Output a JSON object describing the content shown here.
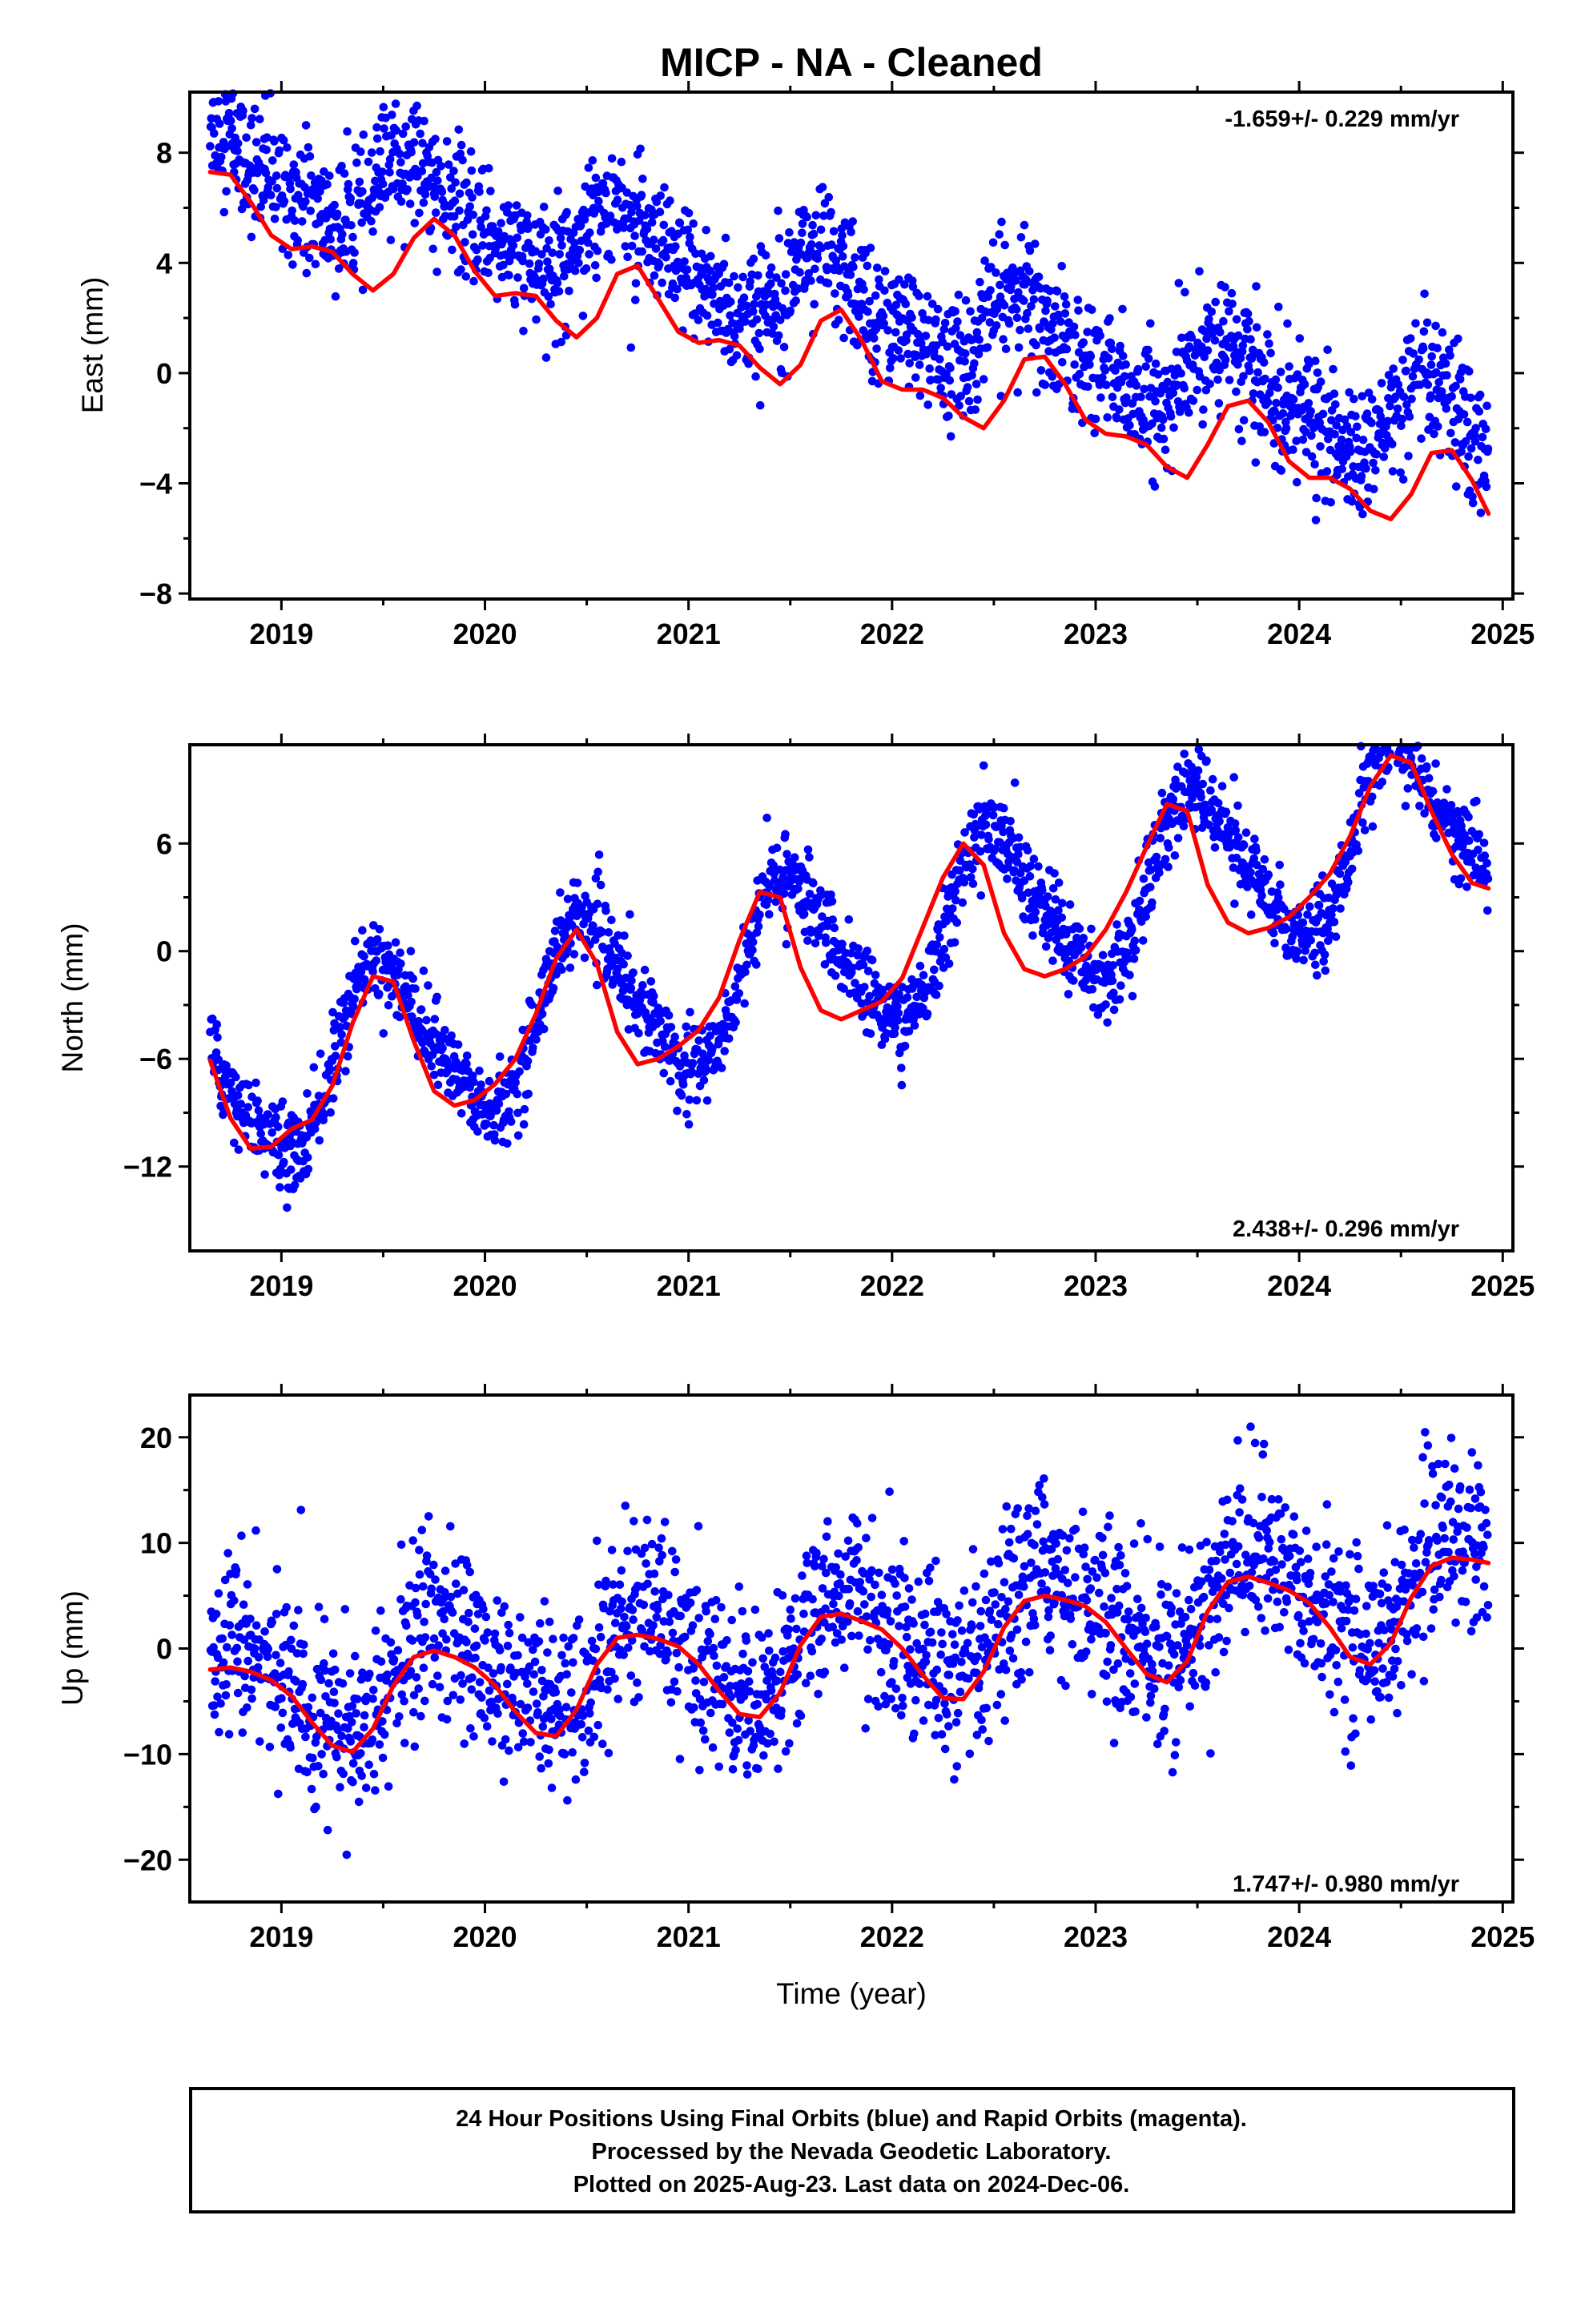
{
  "title": "MICP  - NA - Cleaned",
  "colors": {
    "points": "#0000ff",
    "fit": "#ff0000",
    "frame": "#000000"
  },
  "chart_data": [
    {
      "type": "scatter",
      "ylabel": "East (mm)",
      "xlabel": "",
      "xlim": [
        2018.55,
        2025.05
      ],
      "ylim": [
        -8.2,
        10.2
      ],
      "xticks": [
        "2019",
        "2020",
        "2021",
        "2022",
        "2023",
        "2024",
        "2025"
      ],
      "yticks": [
        "-8",
        "-4",
        "0",
        "4",
        "8"
      ],
      "rate_text": "-1.659+/- 0.229 mm/yr",
      "rate_position": "top-right",
      "series": [
        {
          "role": "daily positions (blue)",
          "x_start": 2018.65,
          "x_end": 2024.93,
          "trend_start": 7.8,
          "trend_rate": -1.659,
          "annual_amp": 1.3,
          "annual_peak": 2019.68,
          "semiannual_amp": 0.55,
          "scatter": 1.15
        },
        {
          "role": "fitted model (red)",
          "x": [
            2018.65,
            2018.75,
            2018.85,
            2018.95,
            2019.05,
            2019.15,
            2019.25,
            2019.35,
            2019.45,
            2019.55,
            2019.65,
            2019.75,
            2019.85,
            2019.95,
            2020.05,
            2020.15,
            2020.25,
            2020.35,
            2020.45,
            2020.55,
            2020.65,
            2020.75,
            2020.85,
            2020.95,
            2021.05,
            2021.15,
            2021.25,
            2021.35,
            2021.45,
            2021.55,
            2021.65,
            2021.75,
            2021.85,
            2021.95,
            2022.05,
            2022.15,
            2022.25,
            2022.35,
            2022.45,
            2022.55,
            2022.65,
            2022.75,
            2022.85,
            2022.95,
            2023.05,
            2023.15,
            2023.25,
            2023.35,
            2023.45,
            2023.55,
            2023.65,
            2023.75,
            2023.85,
            2023.95,
            2024.05,
            2024.15,
            2024.25,
            2024.35,
            2024.45,
            2024.55,
            2024.65,
            2024.75,
            2024.85,
            2024.93
          ],
          "y": [
            7.3,
            7.2,
            6.2,
            5.0,
            4.5,
            4.6,
            4.4,
            3.6,
            3.0,
            3.6,
            4.9,
            5.6,
            5.0,
            3.7,
            2.8,
            2.9,
            2.8,
            1.9,
            1.3,
            2.0,
            3.6,
            3.9,
            2.7,
            1.5,
            1.1,
            1.2,
            1.0,
            0.2,
            -0.4,
            0.3,
            1.9,
            2.3,
            1.2,
            -0.3,
            -0.6,
            -0.6,
            -0.9,
            -1.6,
            -2.0,
            -1.0,
            0.5,
            0.6,
            -0.4,
            -1.7,
            -2.2,
            -2.3,
            -2.6,
            -3.4,
            -3.8,
            -2.6,
            -1.2,
            -1.0,
            -1.8,
            -3.2,
            -3.8,
            -3.8,
            -4.2,
            -5.0,
            -5.3,
            -4.4,
            -2.9,
            -2.8,
            -3.9,
            -5.1
          ]
        }
      ]
    },
    {
      "type": "scatter",
      "ylabel": "North (mm)",
      "xlabel": "",
      "xlim": [
        2018.55,
        2025.05
      ],
      "ylim": [
        -16.7,
        11.5
      ],
      "xticks": [
        "2019",
        "2020",
        "2021",
        "2022",
        "2023",
        "2024",
        "2025"
      ],
      "yticks": [
        "-12",
        "-6",
        "0",
        "6"
      ],
      "rate_text": "2.438+/- 0.296 mm/yr",
      "rate_position": "bottom-right",
      "series": [
        {
          "role": "daily positions (blue)",
          "x_start": 2018.65,
          "x_end": 2024.93,
          "trend_start": -7.6,
          "trend_rate": 2.438,
          "annual_amp": 4.6,
          "annual_peak": 2019.5,
          "semiannual_amp": 0.8,
          "scatter": 1.15
        },
        {
          "role": "fitted model (red)",
          "x": [
            2018.65,
            2018.75,
            2018.85,
            2018.95,
            2019.05,
            2019.15,
            2019.25,
            2019.35,
            2019.45,
            2019.55,
            2019.65,
            2019.75,
            2019.85,
            2019.95,
            2020.05,
            2020.15,
            2020.25,
            2020.35,
            2020.45,
            2020.55,
            2020.65,
            2020.75,
            2020.85,
            2020.95,
            2021.05,
            2021.15,
            2021.25,
            2021.35,
            2021.45,
            2021.55,
            2021.65,
            2021.75,
            2021.85,
            2021.95,
            2022.05,
            2022.15,
            2022.25,
            2022.35,
            2022.45,
            2022.55,
            2022.65,
            2022.75,
            2022.85,
            2022.95,
            2023.05,
            2023.15,
            2023.25,
            2023.35,
            2023.45,
            2023.55,
            2023.65,
            2023.75,
            2023.85,
            2023.95,
            2024.05,
            2024.15,
            2024.25,
            2024.35,
            2024.45,
            2024.55,
            2024.65,
            2024.75,
            2024.85,
            2024.93
          ],
          "y": [
            -6.1,
            -9.3,
            -11.0,
            -10.9,
            -9.9,
            -9.4,
            -7.5,
            -4.0,
            -1.4,
            -1.7,
            -5.0,
            -7.8,
            -8.6,
            -8.3,
            -7.4,
            -6.0,
            -3.5,
            -0.4,
            1.2,
            -0.7,
            -4.5,
            -6.3,
            -6.0,
            -5.3,
            -4.4,
            -2.6,
            0.6,
            3.3,
            3.0,
            -0.9,
            -3.3,
            -3.8,
            -3.3,
            -2.8,
            -1.5,
            1.3,
            4.1,
            6.0,
            4.8,
            1.0,
            -1.0,
            -1.4,
            -1.0,
            -0.3,
            1.2,
            3.3,
            5.8,
            8.2,
            7.8,
            3.7,
            1.6,
            1.0,
            1.3,
            1.9,
            3.0,
            4.3,
            6.4,
            9.2,
            10.9,
            10.5,
            7.8,
            5.4,
            3.8,
            3.5
          ]
        }
      ]
    },
    {
      "type": "scatter",
      "ylabel": "Up (mm)",
      "xlabel": "Time (year)",
      "xlim": [
        2018.55,
        2025.05
      ],
      "ylim": [
        -24.0,
        24.0
      ],
      "xticks": [
        "2019",
        "2020",
        "2021",
        "2022",
        "2023",
        "2024",
        "2025"
      ],
      "yticks": [
        "-20",
        "-10",
        "0",
        "10",
        "20"
      ],
      "rate_text": "1.747+/- 0.980 mm/yr",
      "rate_position": "bottom-right",
      "series": [
        {
          "role": "daily positions (blue)",
          "x_start": 2018.65,
          "x_end": 2024.93,
          "trend_start": -4.6,
          "trend_rate": 1.747,
          "annual_amp": 4.6,
          "annual_peak": 2019.8,
          "semiannual_amp": 1.0,
          "scatter": 4.2
        },
        {
          "role": "fitted model (red)",
          "x": [
            2018.65,
            2018.75,
            2018.85,
            2018.95,
            2019.05,
            2019.15,
            2019.25,
            2019.35,
            2019.45,
            2019.55,
            2019.65,
            2019.75,
            2019.85,
            2019.95,
            2020.05,
            2020.15,
            2020.25,
            2020.35,
            2020.45,
            2020.55,
            2020.65,
            2020.75,
            2020.85,
            2020.95,
            2021.05,
            2021.15,
            2021.25,
            2021.35,
            2021.45,
            2021.55,
            2021.65,
            2021.75,
            2021.85,
            2021.95,
            2022.05,
            2022.15,
            2022.25,
            2022.35,
            2022.45,
            2022.55,
            2022.65,
            2022.75,
            2022.85,
            2022.95,
            2023.05,
            2023.15,
            2023.25,
            2023.35,
            2023.45,
            2023.55,
            2023.65,
            2023.75,
            2023.85,
            2023.95,
            2024.05,
            2024.15,
            2024.25,
            2024.35,
            2024.45,
            2024.55,
            2024.65,
            2024.75,
            2024.85,
            2024.93
          ],
          "y": [
            -2.0,
            -1.8,
            -2.2,
            -3.0,
            -4.5,
            -7.0,
            -9.2,
            -9.8,
            -7.6,
            -3.5,
            -0.8,
            -0.2,
            -0.8,
            -1.8,
            -3.5,
            -6.0,
            -8.0,
            -8.3,
            -5.8,
            -1.5,
            1.0,
            1.3,
            0.9,
            0.2,
            -1.5,
            -4.0,
            -6.2,
            -6.5,
            -4.2,
            0.3,
            3.0,
            3.3,
            2.6,
            1.8,
            0.0,
            -2.5,
            -4.7,
            -4.8,
            -2.2,
            2.0,
            4.5,
            5.0,
            4.6,
            4.0,
            2.5,
            0.0,
            -2.4,
            -3.2,
            -1.2,
            3.5,
            6.3,
            6.8,
            6.2,
            5.5,
            4.3,
            2.0,
            -0.8,
            -1.5,
            0.5,
            4.8,
            7.8,
            8.6,
            8.4,
            8.1
          ]
        }
      ]
    }
  ],
  "footer": {
    "line1": "24 Hour Positions Using Final Orbits (blue) and Rapid Orbits (magenta).",
    "line2": "Processed by the Nevada Geodetic Laboratory.",
    "line3": "Plotted on 2025-Aug-23. Last data on 2024-Dec-06."
  }
}
